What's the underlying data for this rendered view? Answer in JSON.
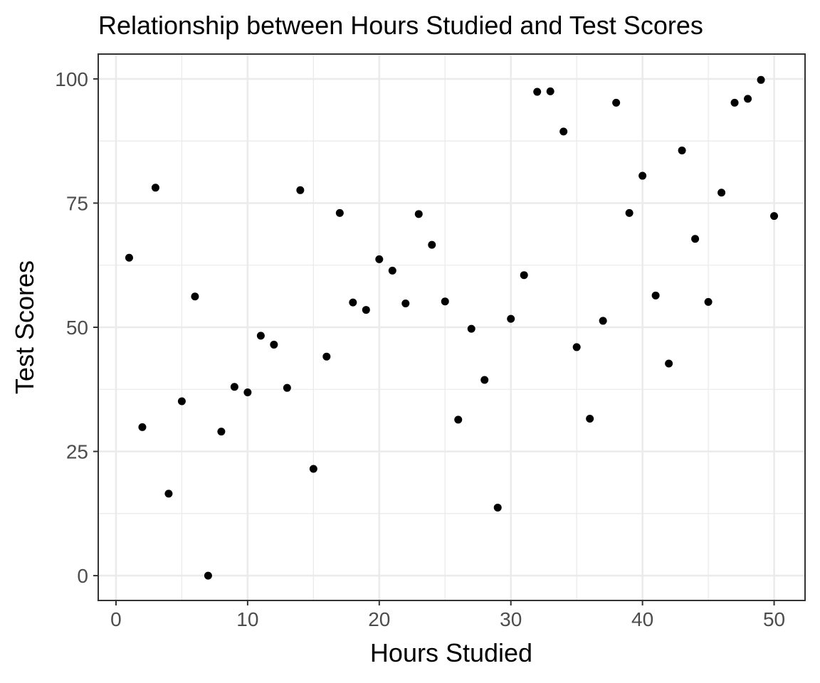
{
  "chart_data": {
    "type": "scatter",
    "title": "Relationship between Hours Studied and Test Scores",
    "xlabel": "Hours Studied",
    "ylabel": "Test Scores",
    "xlim": [
      -1.35,
      52.35
    ],
    "ylim": [
      -5,
      105
    ],
    "x_ticks": [
      0,
      10,
      20,
      30,
      40,
      50
    ],
    "y_ticks": [
      0,
      25,
      50,
      75,
      100
    ],
    "x_tick_labels": [
      "0",
      "10",
      "20",
      "30",
      "40",
      "50"
    ],
    "y_tick_labels": [
      "0",
      "25",
      "50",
      "75",
      "100"
    ],
    "grid": true,
    "point_color": "#000000",
    "x": [
      1,
      2,
      3,
      4,
      5,
      6,
      7,
      8,
      9,
      10,
      11,
      12,
      13,
      14,
      15,
      16,
      17,
      18,
      19,
      20,
      21,
      22,
      23,
      24,
      25,
      26,
      27,
      28,
      29,
      30,
      31,
      32,
      33,
      34,
      35,
      36,
      37,
      38,
      39,
      40,
      41,
      42,
      43,
      44,
      45,
      46,
      47,
      48,
      49,
      50
    ],
    "y": [
      64.0,
      29.9,
      78.1,
      16.5,
      35.1,
      56.2,
      0.0,
      29.0,
      38.0,
      36.9,
      48.3,
      46.5,
      37.8,
      77.6,
      21.5,
      44.1,
      73.0,
      55.0,
      53.5,
      63.7,
      61.4,
      54.8,
      72.8,
      66.6,
      55.2,
      31.4,
      49.7,
      39.4,
      13.7,
      51.7,
      60.5,
      97.4,
      97.5,
      89.4,
      46.0,
      31.6,
      51.3,
      95.2,
      73.0,
      80.5,
      56.4,
      42.7,
      85.6,
      67.8,
      55.1,
      77.1,
      95.2,
      96.0,
      99.8,
      72.4
    ]
  }
}
